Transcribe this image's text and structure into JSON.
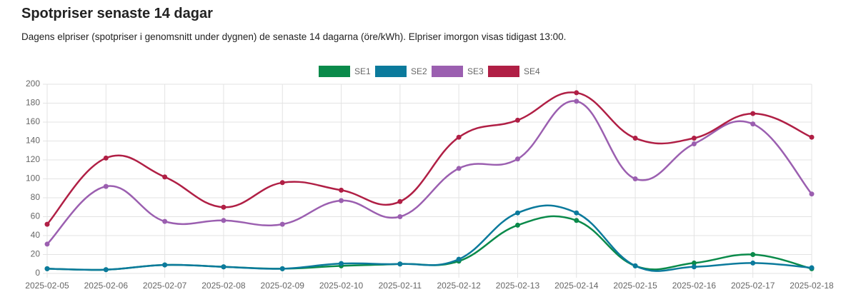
{
  "chart_data": {
    "type": "line",
    "title": "Spotpriser senaste 14 dagar",
    "subtitle": "Dagens elpriser (spotpriser i genomsnitt under dygnen) de senaste 14 dagarna (öre/kWh). Elpriser imorgon visas tidigast 13:00.",
    "categories": [
      "2025-02-05",
      "2025-02-06",
      "2025-02-07",
      "2025-02-08",
      "2025-02-09",
      "2025-02-10",
      "2025-02-11",
      "2025-02-12",
      "2025-02-13",
      "2025-02-14",
      "2025-02-15",
      "2025-02-16",
      "2025-02-17",
      "2025-02-18"
    ],
    "series": [
      {
        "name": "SE1",
        "color": "#0a8a4a",
        "values": [
          5,
          4,
          9,
          7,
          5,
          8,
          10,
          13,
          51,
          56,
          8,
          11,
          20,
          5
        ]
      },
      {
        "name": "SE2",
        "color": "#0b7a9c",
        "values": [
          5,
          4,
          9,
          7,
          5,
          10.5,
          10,
          15,
          64,
          64,
          8,
          7,
          11,
          6
        ]
      },
      {
        "name": "SE3",
        "color": "#9b5fb0",
        "values": [
          31,
          92,
          55,
          56,
          52,
          77,
          60,
          111,
          121,
          182,
          100,
          137,
          158,
          84
        ]
      },
      {
        "name": "SE4",
        "color": "#b01f45",
        "values": [
          52,
          122,
          102,
          70,
          96,
          88,
          76,
          144,
          162,
          191,
          143,
          143,
          169,
          144
        ]
      }
    ],
    "ylim": [
      0,
      200
    ],
    "yticks": [
      0,
      20,
      40,
      60,
      80,
      100,
      120,
      140,
      160,
      180,
      200
    ],
    "grid": true
  }
}
